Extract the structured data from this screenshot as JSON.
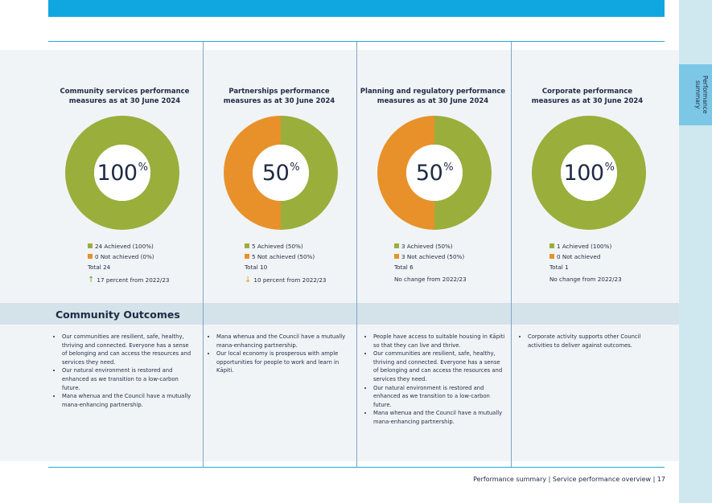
{
  "side_tab": {
    "label": "Performance summary"
  },
  "section": {
    "outcomes_title": "Community Outcomes"
  },
  "colors": {
    "achieved": "#9aae3c",
    "not_achieved": "#e8912a",
    "accent": "#10a7e0"
  },
  "columns": [
    {
      "title_line1": "Community services performance",
      "title_line2": "measures as at 30 June 2024",
      "percent": "100",
      "percent_symbol": "%",
      "achieved_fraction": 1.0,
      "legend_achieved": "24 Achieved (100%)",
      "legend_not_achieved": "0 Not achieved (0%)",
      "total": "Total 24",
      "change_icon": "arrow-up-icon",
      "change_glyph": "↑",
      "change": "17 percent from 2022/23",
      "outcomes": [
        "Our communities are resilient, safe, healthy, thriving and connected. Everyone has a sense of belonging and can access the resources and services they need.",
        "Our natural environment is restored and enhanced as we transition to a low-carbon future.",
        "Mana whenua and the Council have a mutually mana-enhancing partnership."
      ]
    },
    {
      "title_line1": "Partnerships performance",
      "title_line2": "measures as at 30 June 2024",
      "percent": "50",
      "percent_symbol": "%",
      "achieved_fraction": 0.5,
      "legend_achieved": "5 Achieved (50%)",
      "legend_not_achieved": "5 Not achieved (50%)",
      "total": "Total 10",
      "change_icon": "arrow-down-icon",
      "change_glyph": "↓",
      "change": "10 percent from 2022/23",
      "outcomes": [
        "Mana whenua and the Council have a mutually mana-enhancing partnership.",
        "Our local economy is prosperous with ample opportunities for people to work and learn in Kāpiti."
      ]
    },
    {
      "title_line1": "Planning and regulatory performance",
      "title_line2": "measures as at 30 June 2024",
      "percent": "50",
      "percent_symbol": "%",
      "achieved_fraction": 0.5,
      "legend_achieved": "3 Achieved (50%)",
      "legend_not_achieved": "3 Not achieved (50%)",
      "total": "Total 6",
      "change_icon": "",
      "change_glyph": "",
      "change": "No change from 2022/23",
      "outcomes": [
        "People have access to suitable housing in Kāpiti so that they can live and thrive.",
        "Our communities are resilient, safe, healthy, thriving and connected. Everyone has a sense of belonging and can access the resources and services they need.",
        "Our natural environment is restored and enhanced as we transition to a low-carbon future.",
        "Mana whenua and the Council have a mutually mana-enhancing partnership."
      ]
    },
    {
      "title_line1": "Corporate performance",
      "title_line2": "measures as at 30 June 2024",
      "percent": "100",
      "percent_symbol": "%",
      "achieved_fraction": 1.0,
      "legend_achieved": "1 Achieved (100%)",
      "legend_not_achieved": "0 Not achieved",
      "total": "Total 1",
      "change_icon": "",
      "change_glyph": "",
      "change": "No change from 2022/23",
      "outcomes": [
        "Corporate activity supports other Council activities to deliver against outcomes."
      ]
    }
  ],
  "footer": {
    "text": "Performance summary | Service performance overview | 17"
  }
}
